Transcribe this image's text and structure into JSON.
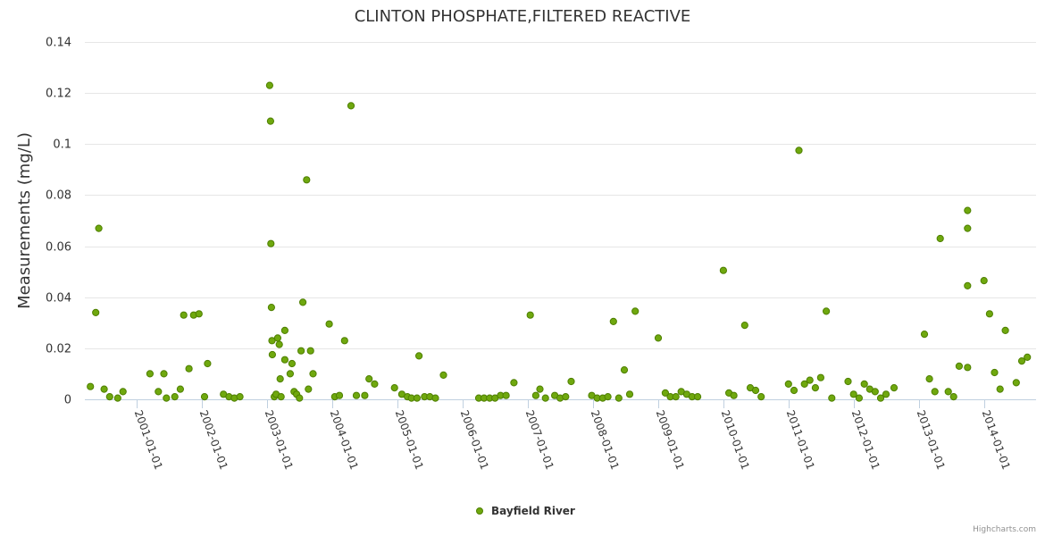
{
  "chart_data": {
    "type": "scatter",
    "title": "CLINTON PHOSPHATE,FILTERED REACTIVE",
    "xlabel": "",
    "ylabel": "Measurements (mg/L)",
    "ylim": [
      0,
      0.14
    ],
    "yticks": [
      "0",
      "0.02",
      "0.04",
      "0.06",
      "0.08",
      "0.1",
      "0.12",
      "0.14"
    ],
    "xlim": [
      "2000-03-15",
      "2014-10-20"
    ],
    "xticks": [
      "2001-01-01",
      "2002-01-01",
      "2003-01-01",
      "2004-01-01",
      "2005-01-01",
      "2006-01-01",
      "2007-01-01",
      "2008-01-01",
      "2009-01-01",
      "2010-01-01",
      "2011-01-01",
      "2012-01-01",
      "2013-01-01",
      "2014-01-01"
    ],
    "grid": true,
    "legend_position": "bottom-center",
    "colors": {
      "marker_fill": "#6fa80e",
      "marker_stroke": "#4e7f00",
      "grid": "#e6e6e6",
      "axis": "#c0d0e0"
    },
    "series": [
      {
        "name": "Bayfield River",
        "points": [
          [
            "2000-04-15",
            0.005
          ],
          [
            "2000-05-15",
            0.034
          ],
          [
            "2000-06-01",
            0.067
          ],
          [
            "2000-07-01",
            0.004
          ],
          [
            "2000-08-01",
            0.001
          ],
          [
            "2000-09-15",
            0.0005
          ],
          [
            "2000-10-15",
            0.003
          ],
          [
            "2001-03-15",
            0.01
          ],
          [
            "2001-05-01",
            0.003
          ],
          [
            "2001-06-01",
            0.01
          ],
          [
            "2001-06-15",
            0.0005
          ],
          [
            "2001-08-01",
            0.001
          ],
          [
            "2001-09-01",
            0.004
          ],
          [
            "2001-09-20",
            0.033
          ],
          [
            "2001-10-20",
            0.012
          ],
          [
            "2001-11-15",
            0.033
          ],
          [
            "2001-12-15",
            0.0335
          ],
          [
            "2002-01-15",
            0.001
          ],
          [
            "2002-02-01",
            0.014
          ],
          [
            "2002-05-01",
            0.002
          ],
          [
            "2002-06-01",
            0.001
          ],
          [
            "2002-07-01",
            0.0005
          ],
          [
            "2002-08-01",
            0.001
          ],
          [
            "2003-01-15",
            0.123
          ],
          [
            "2003-01-20",
            0.109
          ],
          [
            "2003-01-22",
            0.061
          ],
          [
            "2003-01-25",
            0.036
          ],
          [
            "2003-01-28",
            0.023
          ],
          [
            "2003-01-30",
            0.0175
          ],
          [
            "2003-02-10",
            0.001
          ],
          [
            "2003-02-20",
            0.002
          ],
          [
            "2003-03-01",
            0.024
          ],
          [
            "2003-03-10",
            0.0215
          ],
          [
            "2003-03-15",
            0.008
          ],
          [
            "2003-03-20",
            0.001
          ],
          [
            "2003-04-10",
            0.027
          ],
          [
            "2003-04-10",
            0.0155
          ],
          [
            "2003-05-10",
            0.01
          ],
          [
            "2003-05-20",
            0.014
          ],
          [
            "2003-06-01",
            0.003
          ],
          [
            "2003-06-15",
            0.002
          ],
          [
            "2003-07-01",
            0.0005
          ],
          [
            "2003-07-10",
            0.019
          ],
          [
            "2003-07-20",
            0.038
          ],
          [
            "2003-08-10",
            0.086
          ],
          [
            "2003-08-20",
            0.004
          ],
          [
            "2003-09-01",
            0.019
          ],
          [
            "2003-09-15",
            0.01
          ],
          [
            "2003-12-15",
            0.0295
          ],
          [
            "2004-01-15",
            0.001
          ],
          [
            "2004-02-10",
            0.0015
          ],
          [
            "2004-03-10",
            0.023
          ],
          [
            "2004-04-15",
            0.115
          ],
          [
            "2004-05-15",
            0.0015
          ],
          [
            "2004-07-01",
            0.0015
          ],
          [
            "2004-07-25",
            0.008
          ],
          [
            "2004-08-25",
            0.006
          ],
          [
            "2004-12-15",
            0.0045
          ],
          [
            "2005-01-25",
            0.002
          ],
          [
            "2005-02-25",
            0.001
          ],
          [
            "2005-03-20",
            0.0005
          ],
          [
            "2005-04-20",
            0.0005
          ],
          [
            "2005-05-01",
            0.017
          ],
          [
            "2005-06-01",
            0.001
          ],
          [
            "2005-07-01",
            0.001
          ],
          [
            "2005-08-01",
            0.0005
          ],
          [
            "2005-09-15",
            0.0095
          ],
          [
            "2006-04-01",
            0.0005
          ],
          [
            "2006-05-01",
            0.0005
          ],
          [
            "2006-06-01",
            0.0005
          ],
          [
            "2006-07-01",
            0.0005
          ],
          [
            "2006-08-01",
            0.0015
          ],
          [
            "2006-09-01",
            0.0015
          ],
          [
            "2006-10-15",
            0.0065
          ],
          [
            "2007-01-15",
            0.033
          ],
          [
            "2007-02-15",
            0.0015
          ],
          [
            "2007-03-10",
            0.004
          ],
          [
            "2007-04-10",
            0.0005
          ],
          [
            "2007-06-01",
            0.0015
          ],
          [
            "2007-07-01",
            0.0005
          ],
          [
            "2007-08-01",
            0.001
          ],
          [
            "2007-09-01",
            0.007
          ],
          [
            "2007-12-25",
            0.0015
          ],
          [
            "2008-01-25",
            0.0005
          ],
          [
            "2008-02-25",
            0.0005
          ],
          [
            "2008-03-25",
            0.001
          ],
          [
            "2008-04-25",
            0.0305
          ],
          [
            "2008-05-25",
            0.0005
          ],
          [
            "2008-06-25",
            0.0115
          ],
          [
            "2008-07-25",
            0.002
          ],
          [
            "2008-08-25",
            0.0345
          ],
          [
            "2009-01-01",
            0.024
          ],
          [
            "2009-02-10",
            0.0025
          ],
          [
            "2009-03-10",
            0.001
          ],
          [
            "2009-04-10",
            0.001
          ],
          [
            "2009-05-10",
            0.003
          ],
          [
            "2009-06-10",
            0.002
          ],
          [
            "2009-07-10",
            0.001
          ],
          [
            "2009-08-10",
            0.001
          ],
          [
            "2010-01-01",
            0.0505
          ],
          [
            "2010-02-01",
            0.0025
          ],
          [
            "2010-03-01",
            0.0015
          ],
          [
            "2010-05-01",
            0.029
          ],
          [
            "2010-06-01",
            0.0045
          ],
          [
            "2010-07-01",
            0.0035
          ],
          [
            "2010-08-01",
            0.001
          ],
          [
            "2011-01-01",
            0.006
          ],
          [
            "2011-02-01",
            0.0035
          ],
          [
            "2011-03-01",
            0.0975
          ],
          [
            "2011-04-01",
            0.006
          ],
          [
            "2011-05-01",
            0.0075
          ],
          [
            "2011-06-01",
            0.0045
          ],
          [
            "2011-07-01",
            0.0085
          ],
          [
            "2011-08-01",
            0.0345
          ],
          [
            "2011-09-01",
            0.0005
          ],
          [
            "2011-12-01",
            0.007
          ],
          [
            "2012-01-01",
            0.002
          ],
          [
            "2012-02-01",
            0.0005
          ],
          [
            "2012-03-01",
            0.006
          ],
          [
            "2012-04-01",
            0.004
          ],
          [
            "2012-05-01",
            0.003
          ],
          [
            "2012-06-01",
            0.0005
          ],
          [
            "2012-07-01",
            0.002
          ],
          [
            "2012-08-15",
            0.0045
          ],
          [
            "2013-02-01",
            0.0255
          ],
          [
            "2013-03-01",
            0.008
          ],
          [
            "2013-04-01",
            0.003
          ],
          [
            "2013-05-01",
            0.063
          ],
          [
            "2013-06-15",
            0.003
          ],
          [
            "2013-07-15",
            0.001
          ],
          [
            "2013-08-15",
            0.013
          ],
          [
            "2013-10-01",
            0.0445
          ],
          [
            "2013-10-01",
            0.067
          ],
          [
            "2013-10-01",
            0.074
          ],
          [
            "2013-10-01",
            0.0125
          ],
          [
            "2014-01-01",
            0.0465
          ],
          [
            "2014-02-01",
            0.0335
          ],
          [
            "2014-03-01",
            0.0105
          ],
          [
            "2014-04-01",
            0.004
          ],
          [
            "2014-05-01",
            0.027
          ],
          [
            "2014-07-01",
            0.0065
          ],
          [
            "2014-08-01",
            0.015
          ],
          [
            "2014-09-01",
            0.0165
          ]
        ]
      }
    ]
  },
  "credits": "Highcharts.com"
}
